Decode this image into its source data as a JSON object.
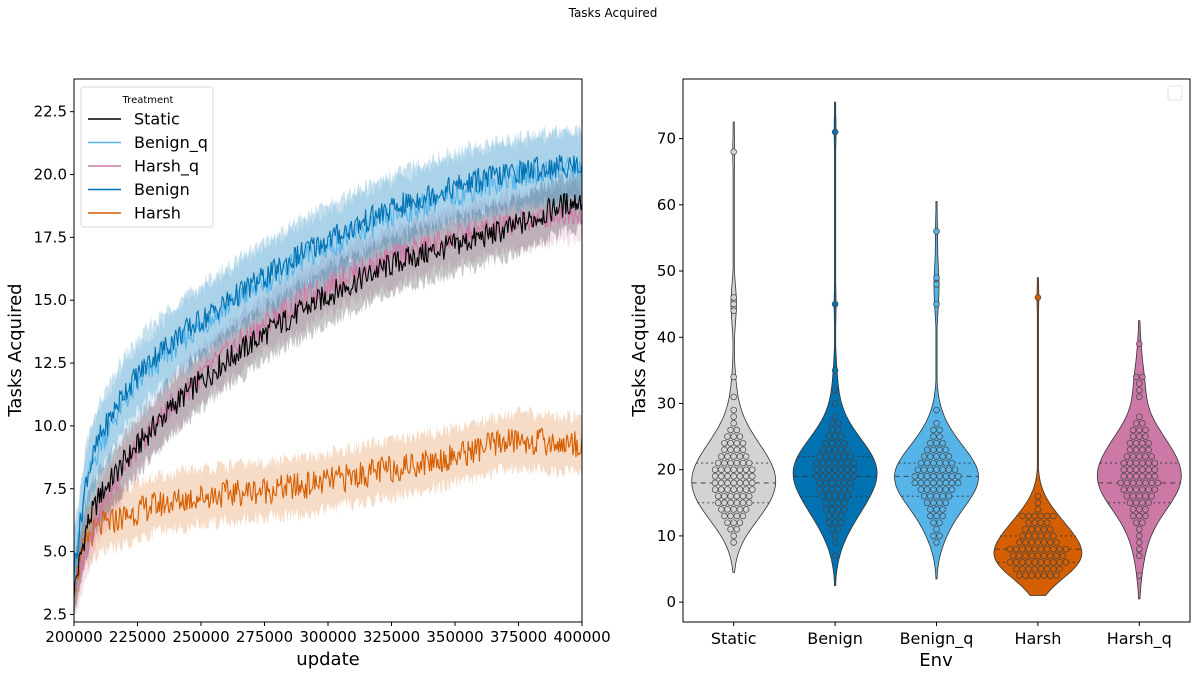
{
  "figure": {
    "suptitle": "Tasks Acquired"
  },
  "chart_data": [
    {
      "type": "line",
      "xlabel": "update",
      "ylabel": "Tasks Acquired",
      "xlim": [
        200000,
        400000
      ],
      "ylim": [
        2.2,
        23.8
      ],
      "xticks": [
        "200000",
        "225000",
        "250000",
        "275000",
        "300000",
        "325000",
        "350000",
        "375000",
        "400000"
      ],
      "yticks": [
        "2.5",
        "5.0",
        "7.5",
        "10.0",
        "12.5",
        "15.0",
        "17.5",
        "20.0",
        "22.5"
      ],
      "legend": {
        "title": "Treatment",
        "placement": "top-left"
      },
      "band": "shaded variability band around each series",
      "series": [
        {
          "name": "Static",
          "color": "#000000",
          "x": [
            200000,
            205000,
            210000,
            220000,
            230000,
            240000,
            250000,
            260000,
            270000,
            280000,
            290000,
            300000,
            310000,
            320000,
            330000,
            340000,
            350000,
            360000,
            370000,
            380000,
            390000,
            400000
          ],
          "y": [
            3.5,
            6.0,
            7.2,
            8.6,
            9.8,
            10.9,
            11.8,
            12.6,
            13.3,
            14.0,
            14.6,
            15.2,
            15.7,
            16.2,
            16.6,
            16.9,
            17.2,
            17.5,
            17.8,
            18.2,
            18.7,
            19.0
          ]
        },
        {
          "name": "Benign_q",
          "color": "#56B4E9",
          "x": [
            200000,
            205000,
            210000,
            220000,
            230000,
            240000,
            250000,
            260000,
            270000,
            280000,
            290000,
            300000,
            310000,
            320000,
            330000,
            340000,
            350000,
            360000,
            370000,
            380000,
            390000,
            400000
          ],
          "y": [
            4.2,
            7.8,
            9.2,
            11.0,
            12.2,
            13.2,
            14.0,
            14.7,
            15.4,
            16.0,
            16.6,
            17.1,
            17.6,
            18.1,
            18.5,
            18.9,
            19.2,
            19.5,
            19.8,
            20.0,
            20.2,
            20.3
          ]
        },
        {
          "name": "Harsh_q",
          "color": "#CC79A7",
          "x": [
            200000,
            205000,
            210000,
            220000,
            230000,
            240000,
            250000,
            260000,
            270000,
            280000,
            290000,
            300000,
            310000,
            320000,
            330000,
            340000,
            350000,
            360000,
            370000,
            380000,
            390000,
            400000
          ],
          "y": [
            3.5,
            5.2,
            6.6,
            8.4,
            9.8,
            11.0,
            12.0,
            12.9,
            13.7,
            14.4,
            15.0,
            15.6,
            16.1,
            16.5,
            16.9,
            17.2,
            17.5,
            17.8,
            18.0,
            18.2,
            18.4,
            18.5
          ]
        },
        {
          "name": "Benign",
          "color": "#0072B2",
          "x": [
            200000,
            205000,
            210000,
            220000,
            230000,
            240000,
            250000,
            260000,
            270000,
            280000,
            290000,
            300000,
            310000,
            320000,
            330000,
            340000,
            350000,
            360000,
            370000,
            380000,
            390000,
            400000
          ],
          "y": [
            4.3,
            8.0,
            9.5,
            11.4,
            12.6,
            13.5,
            14.2,
            14.9,
            15.6,
            16.2,
            16.9,
            17.4,
            17.9,
            18.4,
            18.8,
            19.2,
            19.5,
            19.8,
            20.0,
            20.2,
            20.3,
            20.4
          ]
        },
        {
          "name": "Harsh",
          "color": "#D55E00",
          "x": [
            200000,
            205000,
            210000,
            220000,
            230000,
            240000,
            250000,
            260000,
            270000,
            280000,
            290000,
            300000,
            310000,
            320000,
            330000,
            340000,
            350000,
            360000,
            370000,
            380000,
            390000,
            400000
          ],
          "y": [
            3.6,
            5.5,
            6.0,
            6.4,
            6.8,
            7.0,
            7.2,
            7.3,
            7.4,
            7.5,
            7.6,
            7.8,
            8.0,
            8.2,
            8.4,
            8.6,
            8.8,
            9.1,
            9.4,
            9.4,
            9.3,
            9.3
          ]
        }
      ]
    },
    {
      "type": "violin",
      "xlabel": "Env",
      "ylabel": "Tasks Acquired",
      "ylim": [
        -3,
        79
      ],
      "yticks": [
        "0",
        "10",
        "20",
        "30",
        "40",
        "50",
        "60",
        "70"
      ],
      "categories": [
        "Static",
        "Benign",
        "Benign_q",
        "Harsh",
        "Harsh_q"
      ],
      "legend": {
        "placement": "top-right",
        "entries": []
      },
      "series": [
        {
          "name": "Static",
          "color": "#d3d3d3",
          "min": 4.5,
          "max": 72.5,
          "q1": 15,
          "median": 18,
          "q3": 21,
          "points": [
            68,
            46,
            45,
            44,
            34,
            31,
            29,
            28,
            27,
            26,
            26,
            25,
            25,
            25,
            24,
            24,
            24,
            24,
            23,
            23,
            23,
            23,
            22,
            22,
            22,
            22,
            22,
            21,
            21,
            21,
            21,
            21,
            21,
            20,
            20,
            20,
            20,
            20,
            20,
            20,
            19,
            19,
            19,
            19,
            19,
            19,
            19,
            18,
            18,
            18,
            18,
            18,
            18,
            18,
            17,
            17,
            17,
            17,
            17,
            17,
            17,
            16,
            16,
            16,
            16,
            16,
            16,
            15,
            15,
            15,
            15,
            15,
            15,
            14,
            14,
            14,
            14,
            14,
            13,
            13,
            13,
            13,
            12,
            12,
            12,
            11,
            11,
            10,
            9
          ]
        },
        {
          "name": "Benign",
          "color": "#0072B2",
          "min": 2.5,
          "max": 75.5,
          "q1": 16,
          "median": 19,
          "q3": 22,
          "points": [
            71,
            45,
            35,
            32,
            30,
            28,
            27,
            27,
            26,
            26,
            25,
            25,
            25,
            24,
            24,
            24,
            24,
            23,
            23,
            23,
            23,
            23,
            22,
            22,
            22,
            22,
            22,
            22,
            21,
            21,
            21,
            21,
            21,
            21,
            21,
            20,
            20,
            20,
            20,
            20,
            20,
            20,
            19,
            19,
            19,
            19,
            19,
            19,
            19,
            18,
            18,
            18,
            18,
            18,
            18,
            17,
            17,
            17,
            17,
            17,
            17,
            16,
            16,
            16,
            16,
            16,
            15,
            15,
            15,
            15,
            14,
            14,
            14,
            14,
            13,
            13,
            13,
            12,
            12,
            12,
            11,
            11,
            10,
            9,
            7
          ]
        },
        {
          "name": "Benign_q",
          "color": "#56B4E9",
          "min": 3.5,
          "max": 60.5,
          "q1": 16,
          "median": 19,
          "q3": 21,
          "points": [
            56,
            49,
            48,
            45,
            29,
            27,
            26,
            26,
            25,
            25,
            24,
            24,
            24,
            23,
            23,
            23,
            23,
            22,
            22,
            22,
            22,
            22,
            21,
            21,
            21,
            21,
            21,
            21,
            20,
            20,
            20,
            20,
            20,
            20,
            20,
            19,
            19,
            19,
            19,
            19,
            19,
            19,
            19,
            18,
            18,
            18,
            18,
            18,
            18,
            18,
            18,
            17,
            17,
            17,
            17,
            17,
            17,
            16,
            16,
            16,
            16,
            16,
            15,
            15,
            15,
            15,
            14,
            14,
            14,
            13,
            13,
            13,
            12,
            12,
            11,
            10,
            10,
            9
          ]
        },
        {
          "name": "Harsh",
          "color": "#D55E00",
          "min": 1,
          "max": 49,
          "q1": 6,
          "median": 8,
          "q3": 10,
          "points": [
            46,
            16,
            15,
            14,
            13,
            13,
            13,
            13,
            13,
            13,
            12,
            12,
            12,
            12,
            11,
            11,
            11,
            11,
            11,
            10,
            10,
            10,
            10,
            10,
            10,
            9,
            9,
            9,
            9,
            9,
            9,
            9,
            8,
            8,
            8,
            8,
            8,
            8,
            8,
            8,
            8,
            8,
            7,
            7,
            7,
            7,
            7,
            7,
            7,
            7,
            7,
            6,
            6,
            6,
            6,
            6,
            6,
            6,
            6,
            6,
            6,
            5,
            5,
            5,
            5,
            5,
            5,
            5,
            5,
            4,
            4,
            4,
            4,
            4,
            4,
            4
          ]
        },
        {
          "name": "Harsh_q",
          "color": "#CC79A7",
          "min": 0.5,
          "max": 42.5,
          "q1": 15,
          "median": 18,
          "q3": 21,
          "points": [
            39,
            34,
            34,
            33,
            32,
            31,
            28,
            27,
            27,
            26,
            26,
            26,
            25,
            25,
            25,
            24,
            24,
            24,
            24,
            23,
            23,
            23,
            23,
            22,
            22,
            22,
            22,
            22,
            21,
            21,
            21,
            21,
            21,
            21,
            20,
            20,
            20,
            20,
            20,
            20,
            19,
            19,
            19,
            19,
            19,
            19,
            18,
            18,
            18,
            18,
            18,
            18,
            18,
            17,
            17,
            17,
            17,
            17,
            17,
            16,
            16,
            16,
            16,
            16,
            15,
            15,
            15,
            15,
            14,
            14,
            14,
            13,
            13,
            13,
            12,
            12,
            11,
            10,
            9,
            8,
            7,
            4
          ]
        }
      ]
    }
  ]
}
